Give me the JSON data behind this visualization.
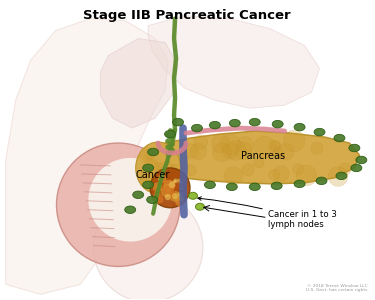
{
  "title": "Stage IIB Pancreatic Cancer",
  "title_fontsize": 9.5,
  "title_fontweight": "bold",
  "bg_color": "#ffffff",
  "label_cancer": "Cancer",
  "label_pancreas": "Pancreas",
  "label_lymph": "Cancer in 1 to 3\nlymph nodes",
  "copyright": "© 2018 Terese Winslow LLC\nU.S. Govt. has certain rights",
  "pancreas_color": "#D4A845",
  "pancreas_edge": "#B8922A",
  "lymph_node_color": "#4A7A2A",
  "lymph_node_edge": "#2A5A10",
  "cancer_outer": "#C06010",
  "cancer_inner": "#E08020",
  "cancer_highlight": "#E8B040",
  "duodenum_color": "#E8B0A8",
  "duodenum_edge": "#C88880",
  "duodenum_inner": "#F5D8D0",
  "stomach_bg": "#F2E0DC",
  "stomach_edge": "#DCC0BC",
  "body_fill": "#F8EEE8",
  "body_edge": "#E8D0C8",
  "duct_green": "#5A8A2A",
  "duct_blue": "#5060A0",
  "duct_pink": "#D88090",
  "upper_bg1": "#F0E0DC",
  "upper_bg2": "#EDD8D4"
}
